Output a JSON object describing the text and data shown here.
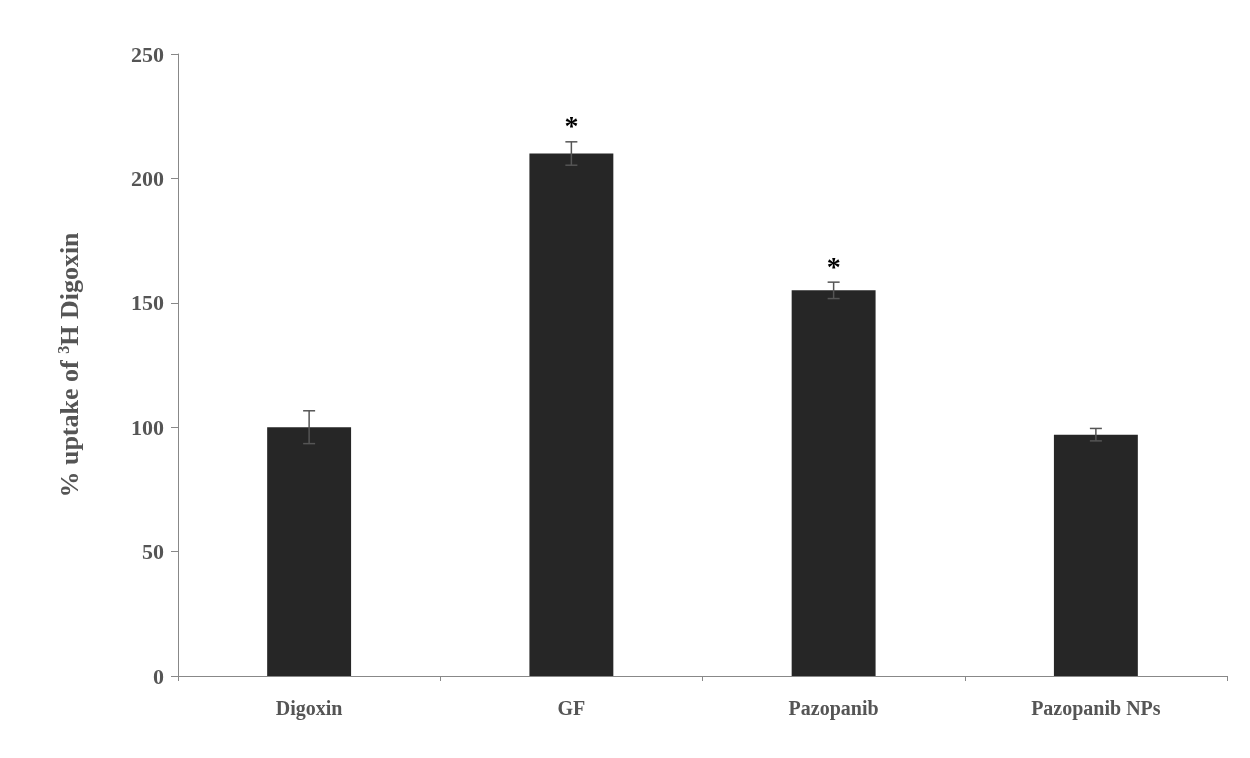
{
  "chart_data": {
    "type": "bar",
    "ylabel": "% uptake of $^{3}$H Digoxin",
    "categories": [
      "Digoxin",
      "GF",
      "Pazopanib",
      "Pazopanib NPs"
    ],
    "values": [
      100,
      210,
      155,
      97
    ],
    "errors": [
      6.6,
      4.7,
      3.3,
      2.5
    ],
    "color": "#262626",
    "ylim": [
      0,
      250
    ],
    "yticks": [
      0,
      50,
      100,
      150,
      200,
      250
    ],
    "grid": false,
    "annotations": [
      {
        "text": "*",
        "x": "GF",
        "y": 210
      },
      {
        "text": "*",
        "x": "Pazopanib",
        "y": 155
      }
    ]
  }
}
